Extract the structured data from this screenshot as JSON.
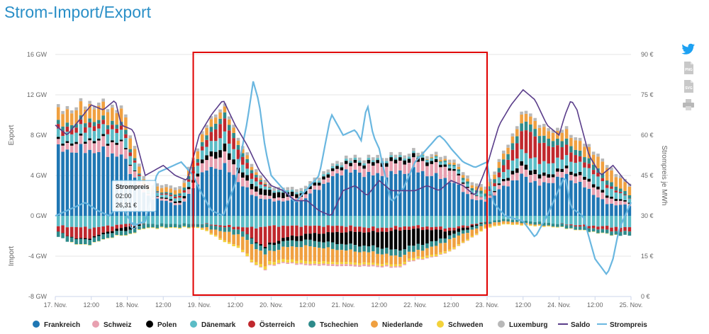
{
  "page": {
    "title": "Strom-Import/Export"
  },
  "icons": [
    "twitter-icon",
    "png-download-icon",
    "svg-download-icon",
    "print-icon"
  ],
  "colors": {
    "Frankreich": "#1f77b4",
    "Schweiz": "#e8a0b0",
    "Polen": "#000000",
    "Dänemark": "#5bbcc6",
    "Österreich": "#c0282d",
    "Tschechien": "#2e8b8b",
    "Niederlande": "#f0a040",
    "Schweden": "#f3d23b",
    "Luxemburg": "#b8b8b8",
    "Saldo": "#5a3d8a",
    "Strompreis": "#6ab7e0",
    "title": "#2a8fc7",
    "highlight_box": "#e00000"
  },
  "chart_data": {
    "type": "bar",
    "stacked": true,
    "ylabel_left": "Export",
    "ylabel_left_lower": "Import",
    "ylabel_right": "Strompreis je MWh",
    "ylim_left": [
      -8,
      16
    ],
    "ylim_right": [
      0,
      90
    ],
    "yticks_left": [
      "16 GW",
      "12 GW",
      "8 GW",
      "4 GW",
      "0 GW",
      "-4 GW",
      "-8 GW"
    ],
    "yticks_left_values": [
      16,
      12,
      8,
      4,
      0,
      -4,
      -8
    ],
    "yticks_right": [
      "90 €",
      "75 €",
      "60 €",
      "45 €",
      "30 €",
      "15 €",
      "0 €"
    ],
    "yticks_right_values": [
      90,
      75,
      60,
      45,
      30,
      15,
      0
    ],
    "xlim_hours": [
      0,
      192
    ],
    "xticks": [
      {
        "label": "17. Nov.",
        "h": 0
      },
      {
        "label": "12:00",
        "h": 12
      },
      {
        "label": "18. Nov.",
        "h": 24
      },
      {
        "label": "12:00",
        "h": 36
      },
      {
        "label": "19. Nov.",
        "h": 48
      },
      {
        "label": "12:00",
        "h": 60
      },
      {
        "label": "20. Nov.",
        "h": 72
      },
      {
        "label": "12:00",
        "h": 84
      },
      {
        "label": "21. Nov.",
        "h": 96
      },
      {
        "label": "12:00",
        "h": 108
      },
      {
        "label": "22. Nov.",
        "h": 120
      },
      {
        "label": "12:00",
        "h": 132
      },
      {
        "label": "23. Nov.",
        "h": 144
      },
      {
        "label": "12:00",
        "h": 156
      },
      {
        "label": "24. Nov.",
        "h": 168
      },
      {
        "label": "12:00",
        "h": 180
      },
      {
        "label": "25. Nov.",
        "h": 192
      }
    ],
    "legend": [
      "Frankreich",
      "Schweiz",
      "Polen",
      "Dänemark",
      "Österreich",
      "Tschechien",
      "Niederlande",
      "Schweden",
      "Luxemburg",
      "Saldo",
      "Strompreis"
    ],
    "legend_position": "bottom",
    "grid": true,
    "highlight_range_hours": [
      46,
      144
    ],
    "tooltip": {
      "title": "Strompreis",
      "time": "02:00",
      "value": "26,31 €",
      "hour": 26,
      "price": 26.31
    },
    "export_keys": [
      "Frankreich",
      "Schweiz",
      "Polen",
      "Dänemark",
      "Österreich",
      "Tschechien",
      "Niederlande",
      "Luxemburg"
    ],
    "import_keys": [
      "Dänemark",
      "Österreich",
      "Polen",
      "Tschechien",
      "Niederlande",
      "Schweden",
      "Schweiz"
    ],
    "export_keypoints": {
      "Frankreich": [
        [
          0,
          6.5
        ],
        [
          12,
          6.5
        ],
        [
          22,
          6.0
        ],
        [
          30,
          2.0
        ],
        [
          42,
          1.0
        ],
        [
          50,
          4.5
        ],
        [
          56,
          5.0
        ],
        [
          66,
          2.0
        ],
        [
          72,
          1.5
        ],
        [
          82,
          1.5
        ],
        [
          96,
          4.5
        ],
        [
          108,
          4.0
        ],
        [
          120,
          4.5
        ],
        [
          132,
          3.5
        ],
        [
          140,
          1.5
        ],
        [
          144,
          1.5
        ],
        [
          150,
          3.0
        ],
        [
          156,
          4.0
        ],
        [
          162,
          3.0
        ],
        [
          170,
          4.0
        ],
        [
          176,
          3.0
        ],
        [
          184,
          1.2
        ],
        [
          192,
          1.0
        ]
      ],
      "Schweiz": [
        [
          0,
          0.5
        ],
        [
          12,
          1.0
        ],
        [
          22,
          1.2
        ],
        [
          30,
          0.2
        ],
        [
          42,
          0.2
        ],
        [
          50,
          1.0
        ],
        [
          58,
          1.2
        ],
        [
          66,
          0.5
        ],
        [
          72,
          0.3
        ],
        [
          84,
          0.4
        ],
        [
          96,
          0.5
        ],
        [
          108,
          1.0
        ],
        [
          120,
          1.0
        ],
        [
          132,
          1.2
        ],
        [
          140,
          0.4
        ],
        [
          144,
          0.2
        ],
        [
          156,
          0.8
        ],
        [
          168,
          0.5
        ],
        [
          180,
          0.8
        ],
        [
          192,
          0.2
        ]
      ],
      "Polen": [
        [
          0,
          0.2
        ],
        [
          20,
          0.2
        ],
        [
          30,
          0.0
        ],
        [
          48,
          0.3
        ],
        [
          56,
          0.8
        ],
        [
          60,
          0.5
        ],
        [
          72,
          0.6
        ],
        [
          84,
          0.3
        ],
        [
          96,
          0.3
        ],
        [
          120,
          0.4
        ],
        [
          132,
          0.2
        ],
        [
          144,
          0.0
        ],
        [
          156,
          0.5
        ],
        [
          166,
          0.3
        ],
        [
          180,
          0.3
        ],
        [
          192,
          0.1
        ]
      ],
      "Dänemark": [
        [
          0,
          0.8
        ],
        [
          12,
          1.0
        ],
        [
          24,
          1.0
        ],
        [
          30,
          0.3
        ],
        [
          42,
          0.3
        ],
        [
          48,
          0.8
        ],
        [
          56,
          1.2
        ],
        [
          66,
          0.5
        ],
        [
          72,
          0.2
        ],
        [
          96,
          0.2
        ],
        [
          120,
          0.2
        ],
        [
          144,
          0.3
        ],
        [
          156,
          1.2
        ],
        [
          170,
          1.0
        ],
        [
          180,
          1.0
        ],
        [
          192,
          0.4
        ]
      ],
      "Österreich": [
        [
          0,
          0.5
        ],
        [
          12,
          0.5
        ],
        [
          24,
          0.4
        ],
        [
          30,
          0.0
        ],
        [
          48,
          0.3
        ],
        [
          56,
          1.5
        ],
        [
          62,
          0.8
        ],
        [
          72,
          0.0
        ],
        [
          120,
          0.0
        ],
        [
          144,
          0.0
        ],
        [
          152,
          1.0
        ],
        [
          158,
          2.5
        ],
        [
          166,
          1.5
        ],
        [
          176,
          0.5
        ],
        [
          184,
          0.3
        ],
        [
          192,
          0.0
        ]
      ],
      "Tschechien": [
        [
          0,
          0.4
        ],
        [
          12,
          0.4
        ],
        [
          24,
          0.4
        ],
        [
          30,
          0.0
        ],
        [
          48,
          0.4
        ],
        [
          56,
          0.6
        ],
        [
          66,
          0.3
        ],
        [
          72,
          0.0
        ],
        [
          120,
          0.0
        ],
        [
          144,
          0.3
        ],
        [
          156,
          0.8
        ],
        [
          170,
          0.6
        ],
        [
          180,
          0.5
        ],
        [
          192,
          0.3
        ]
      ],
      "Niederlande": [
        [
          0,
          1.2
        ],
        [
          12,
          1.4
        ],
        [
          24,
          1.2
        ],
        [
          30,
          0.5
        ],
        [
          42,
          0.4
        ],
        [
          48,
          0.8
        ],
        [
          56,
          0.6
        ],
        [
          66,
          0.3
        ],
        [
          72,
          0.0
        ],
        [
          120,
          0.0
        ],
        [
          144,
          0.4
        ],
        [
          156,
          0.8
        ],
        [
          168,
          0.8
        ],
        [
          176,
          1.0
        ],
        [
          184,
          1.2
        ],
        [
          192,
          0.8
        ]
      ],
      "Luxemburg": [
        [
          0,
          0.3
        ],
        [
          192,
          0.3
        ]
      ]
    },
    "import_keypoints": {
      "Dänemark": [
        [
          0,
          1.0
        ],
        [
          12,
          1.2
        ],
        [
          24,
          0.8
        ],
        [
          30,
          0.8
        ],
        [
          42,
          0.8
        ],
        [
          50,
          0.8
        ],
        [
          58,
          1.0
        ],
        [
          66,
          1.2
        ],
        [
          72,
          1.0
        ],
        [
          84,
          1.0
        ],
        [
          96,
          1.0
        ],
        [
          108,
          1.2
        ],
        [
          120,
          1.0
        ],
        [
          132,
          1.2
        ],
        [
          144,
          0.6
        ],
        [
          150,
          0.3
        ],
        [
          168,
          0.8
        ],
        [
          180,
          1.0
        ],
        [
          192,
          1.2
        ]
      ],
      "Österreich": [
        [
          0,
          0.5
        ],
        [
          8,
          1.2
        ],
        [
          14,
          0.8
        ],
        [
          20,
          0.4
        ],
        [
          24,
          0.3
        ],
        [
          30,
          0.0
        ],
        [
          48,
          0.0
        ],
        [
          62,
          0.3
        ],
        [
          70,
          2.0
        ],
        [
          76,
          1.2
        ],
        [
          84,
          0.8
        ],
        [
          96,
          0.6
        ],
        [
          108,
          0.4
        ],
        [
          120,
          0.3
        ],
        [
          132,
          0.3
        ],
        [
          144,
          0.0
        ],
        [
          168,
          0.0
        ],
        [
          186,
          0.4
        ],
        [
          192,
          0.4
        ]
      ],
      "Polen": [
        [
          0,
          0.0
        ],
        [
          20,
          0.2
        ],
        [
          24,
          0.4
        ],
        [
          30,
          0.0
        ],
        [
          62,
          0.0
        ],
        [
          72,
          0.2
        ],
        [
          84,
          0.6
        ],
        [
          96,
          1.2
        ],
        [
          108,
          1.5
        ],
        [
          114,
          2.0
        ],
        [
          120,
          1.6
        ],
        [
          126,
          1.2
        ],
        [
          132,
          0.4
        ],
        [
          144,
          0.0
        ],
        [
          192,
          0.0
        ]
      ],
      "Tschechien": [
        [
          0,
          0.5
        ],
        [
          12,
          0.5
        ],
        [
          24,
          0.4
        ],
        [
          48,
          0.3
        ],
        [
          60,
          0.5
        ],
        [
          72,
          0.6
        ],
        [
          84,
          0.6
        ],
        [
          96,
          0.6
        ],
        [
          108,
          0.6
        ],
        [
          120,
          0.6
        ],
        [
          132,
          0.4
        ],
        [
          144,
          0.2
        ],
        [
          168,
          0.3
        ],
        [
          192,
          0.4
        ]
      ],
      "Niederlande": [
        [
          0,
          0.0
        ],
        [
          30,
          0.0
        ],
        [
          48,
          0.0
        ],
        [
          56,
          0.8
        ],
        [
          66,
          1.5
        ],
        [
          72,
          1.0
        ],
        [
          84,
          1.5
        ],
        [
          96,
          1.2
        ],
        [
          108,
          1.0
        ],
        [
          120,
          0.6
        ],
        [
          132,
          1.0
        ],
        [
          144,
          0.3
        ],
        [
          168,
          0.0
        ],
        [
          192,
          0.0
        ]
      ],
      "Schweden": [
        [
          0,
          0.0
        ],
        [
          48,
          0.1
        ],
        [
          60,
          0.2
        ],
        [
          72,
          0.3
        ],
        [
          96,
          0.2
        ],
        [
          120,
          0.2
        ],
        [
          144,
          0.1
        ],
        [
          192,
          0.0
        ]
      ],
      "Schweiz": [
        [
          0,
          0.0
        ],
        [
          60,
          0.0
        ],
        [
          72,
          0.1
        ],
        [
          96,
          0.2
        ],
        [
          120,
          0.1
        ],
        [
          144,
          0.0
        ],
        [
          192,
          0.0
        ]
      ]
    },
    "saldo_keypoints": [
      [
        0,
        9.0
      ],
      [
        4,
        8.0
      ],
      [
        8,
        9.5
      ],
      [
        12,
        11.0
      ],
      [
        16,
        10.5
      ],
      [
        20,
        11.5
      ],
      [
        22,
        9.0
      ],
      [
        26,
        8.5
      ],
      [
        30,
        4.0
      ],
      [
        36,
        5.0
      ],
      [
        40,
        4.0
      ],
      [
        44,
        3.5
      ],
      [
        48,
        8.0
      ],
      [
        52,
        10.0
      ],
      [
        56,
        11.5
      ],
      [
        60,
        9.0
      ],
      [
        64,
        7.0
      ],
      [
        68,
        4.5
      ],
      [
        72,
        3.0
      ],
      [
        76,
        2.5
      ],
      [
        80,
        1.5
      ],
      [
        84,
        1.5
      ],
      [
        88,
        0.5
      ],
      [
        92,
        0.0
      ],
      [
        96,
        2.5
      ],
      [
        100,
        3.0
      ],
      [
        104,
        2.0
      ],
      [
        108,
        3.5
      ],
      [
        112,
        2.5
      ],
      [
        116,
        2.5
      ],
      [
        120,
        2.5
      ],
      [
        124,
        3.0
      ],
      [
        128,
        2.5
      ],
      [
        132,
        3.5
      ],
      [
        136,
        3.0
      ],
      [
        140,
        2.0
      ],
      [
        144,
        5.0
      ],
      [
        148,
        9.0
      ],
      [
        152,
        11.0
      ],
      [
        156,
        12.5
      ],
      [
        160,
        11.5
      ],
      [
        164,
        9.0
      ],
      [
        168,
        8.0
      ],
      [
        170,
        10.0
      ],
      [
        172,
        11.5
      ],
      [
        174,
        10.5
      ],
      [
        178,
        6.0
      ],
      [
        182,
        4.0
      ],
      [
        186,
        5.0
      ],
      [
        190,
        3.5
      ],
      [
        192,
        3.0
      ]
    ],
    "price_keypoints": [
      [
        0,
        30.0
      ],
      [
        6,
        33.0
      ],
      [
        10,
        35.0
      ],
      [
        14,
        32.0
      ],
      [
        18,
        30.0
      ],
      [
        22,
        35.0
      ],
      [
        24,
        30.0
      ],
      [
        26,
        26.31
      ],
      [
        30,
        28.0
      ],
      [
        34,
        46.0
      ],
      [
        38,
        48.0
      ],
      [
        42,
        50.0
      ],
      [
        46,
        45.0
      ],
      [
        48,
        40.0
      ],
      [
        52,
        32.0
      ],
      [
        56,
        30.0
      ],
      [
        60,
        42.0
      ],
      [
        64,
        65.0
      ],
      [
        66,
        80.0
      ],
      [
        68,
        72.0
      ],
      [
        70,
        55.0
      ],
      [
        72,
        45.0
      ],
      [
        76,
        40.0
      ],
      [
        80,
        35.0
      ],
      [
        84,
        40.0
      ],
      [
        88,
        45.0
      ],
      [
        92,
        68.0
      ],
      [
        96,
        60.0
      ],
      [
        100,
        62.0
      ],
      [
        102,
        58.0
      ],
      [
        104,
        72.0
      ],
      [
        106,
        60.0
      ],
      [
        108,
        55.0
      ],
      [
        112,
        35.0
      ],
      [
        116,
        40.0
      ],
      [
        120,
        50.0
      ],
      [
        124,
        55.0
      ],
      [
        128,
        60.0
      ],
      [
        130,
        58.0
      ],
      [
        132,
        55.0
      ],
      [
        136,
        50.0
      ],
      [
        140,
        48.0
      ],
      [
        144,
        50.0
      ],
      [
        146,
        35.0
      ],
      [
        150,
        30.0
      ],
      [
        156,
        28.0
      ],
      [
        160,
        22.0
      ],
      [
        164,
        30.0
      ],
      [
        170,
        45.0
      ],
      [
        172,
        33.0
      ],
      [
        176,
        30.0
      ],
      [
        180,
        14.0
      ],
      [
        184,
        8.0
      ],
      [
        186,
        14.0
      ],
      [
        188,
        25.0
      ],
      [
        192,
        35.0
      ]
    ]
  },
  "legend_labels": {
    "frankreich": "Frankreich",
    "schweiz": "Schweiz",
    "polen": "Polen",
    "daenemark": "Dänemark",
    "oesterreich": "Österreich",
    "tschechien": "Tschechien",
    "niederlande": "Niederlande",
    "schweden": "Schweden",
    "luxemburg": "Luxemburg",
    "saldo": "Saldo",
    "strompreis": "Strompreis"
  }
}
